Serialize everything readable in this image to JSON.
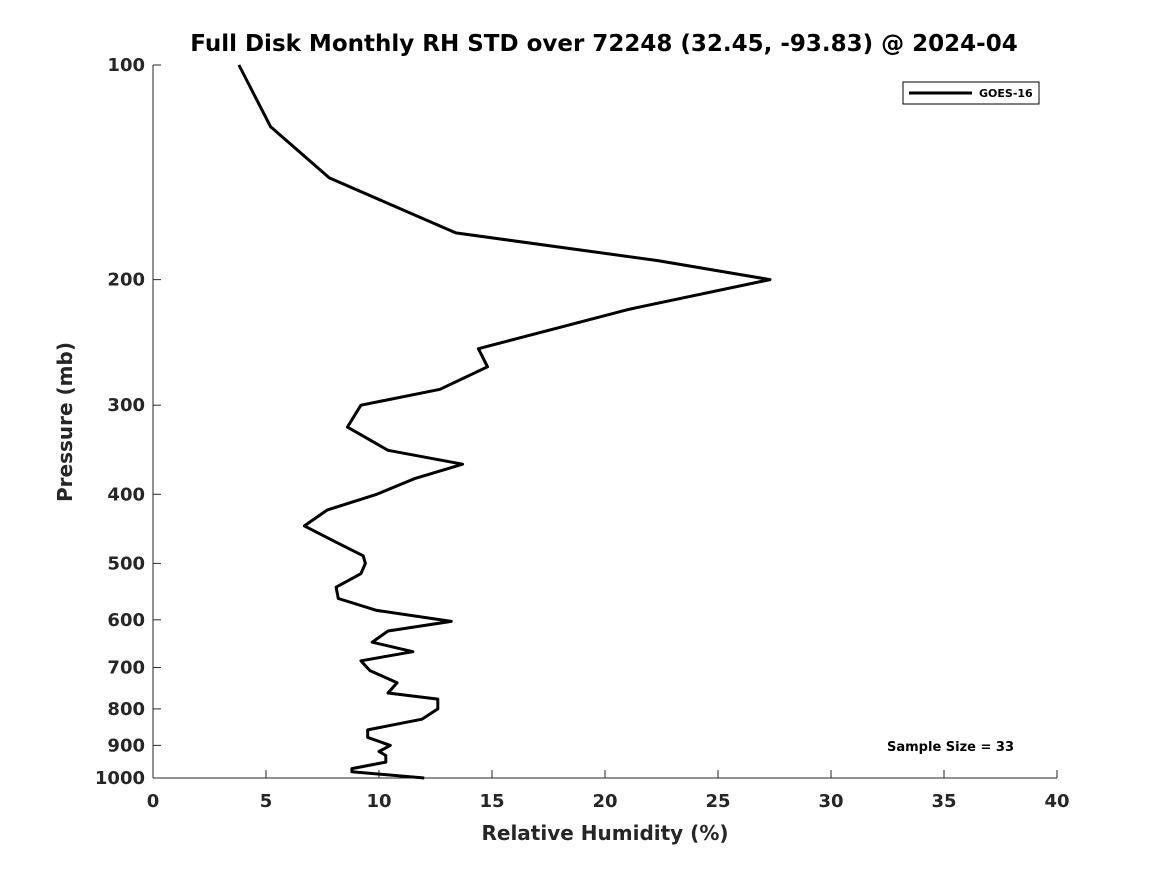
{
  "chart_data": {
    "type": "line",
    "title": "Full Disk Monthly RH STD over 72248 (32.45, -93.83) @ 2024-04",
    "xlabel": "Relative Humidity (%)",
    "ylabel": "Pressure (mb)",
    "xlim": [
      0,
      40
    ],
    "ylim": [
      100,
      1000
    ],
    "y_scale": "log",
    "y_reversed": true,
    "grid": false,
    "legend_position": "top-right",
    "x_ticks": [
      0,
      5,
      10,
      15,
      20,
      25,
      30,
      35,
      40
    ],
    "x_tick_labels": [
      "0",
      "5",
      "10",
      "15",
      "20",
      "25",
      "30",
      "35",
      "40"
    ],
    "y_ticks": [
      100,
      200,
      300,
      400,
      500,
      600,
      700,
      800,
      900,
      1000
    ],
    "y_tick_labels": [
      "100",
      "200",
      "300",
      "400",
      "500",
      "600",
      "700",
      "800",
      "900",
      "1000"
    ],
    "series": [
      {
        "name": "GOES-16",
        "color": "#000000",
        "x": [
          3.8,
          5.2,
          7.8,
          13.4,
          22.3,
          27.3,
          21.1,
          14.4,
          14.8,
          12.7,
          9.2,
          8.6,
          10.4,
          13.7,
          11.6,
          9.9,
          7.7,
          6.7,
          8.1,
          9.3,
          9.4,
          9.2,
          8.1,
          8.2,
          9.9,
          13.2,
          10.4,
          9.7,
          11.5,
          9.2,
          9.6,
          10.8,
          10.4,
          12.6,
          12.6,
          11.9,
          9.5,
          9.5,
          10.5,
          10.0,
          10.3,
          10.3,
          8.8,
          8.8,
          12.0
        ],
        "y": [
          100,
          122,
          144,
          172,
          188,
          200,
          220,
          250,
          265,
          285,
          300,
          322,
          347,
          363,
          380,
          400,
          421,
          443,
          467,
          488,
          500,
          517,
          540,
          560,
          582,
          603,
          622,
          645,
          665,
          685,
          707,
          735,
          760,
          775,
          800,
          827,
          856,
          877,
          900,
          918,
          930,
          950,
          970,
          980,
          1000
        ]
      }
    ],
    "annotations": [
      {
        "text": "Sample Size = 33",
        "x": 32.4,
        "y": 902
      }
    ]
  }
}
